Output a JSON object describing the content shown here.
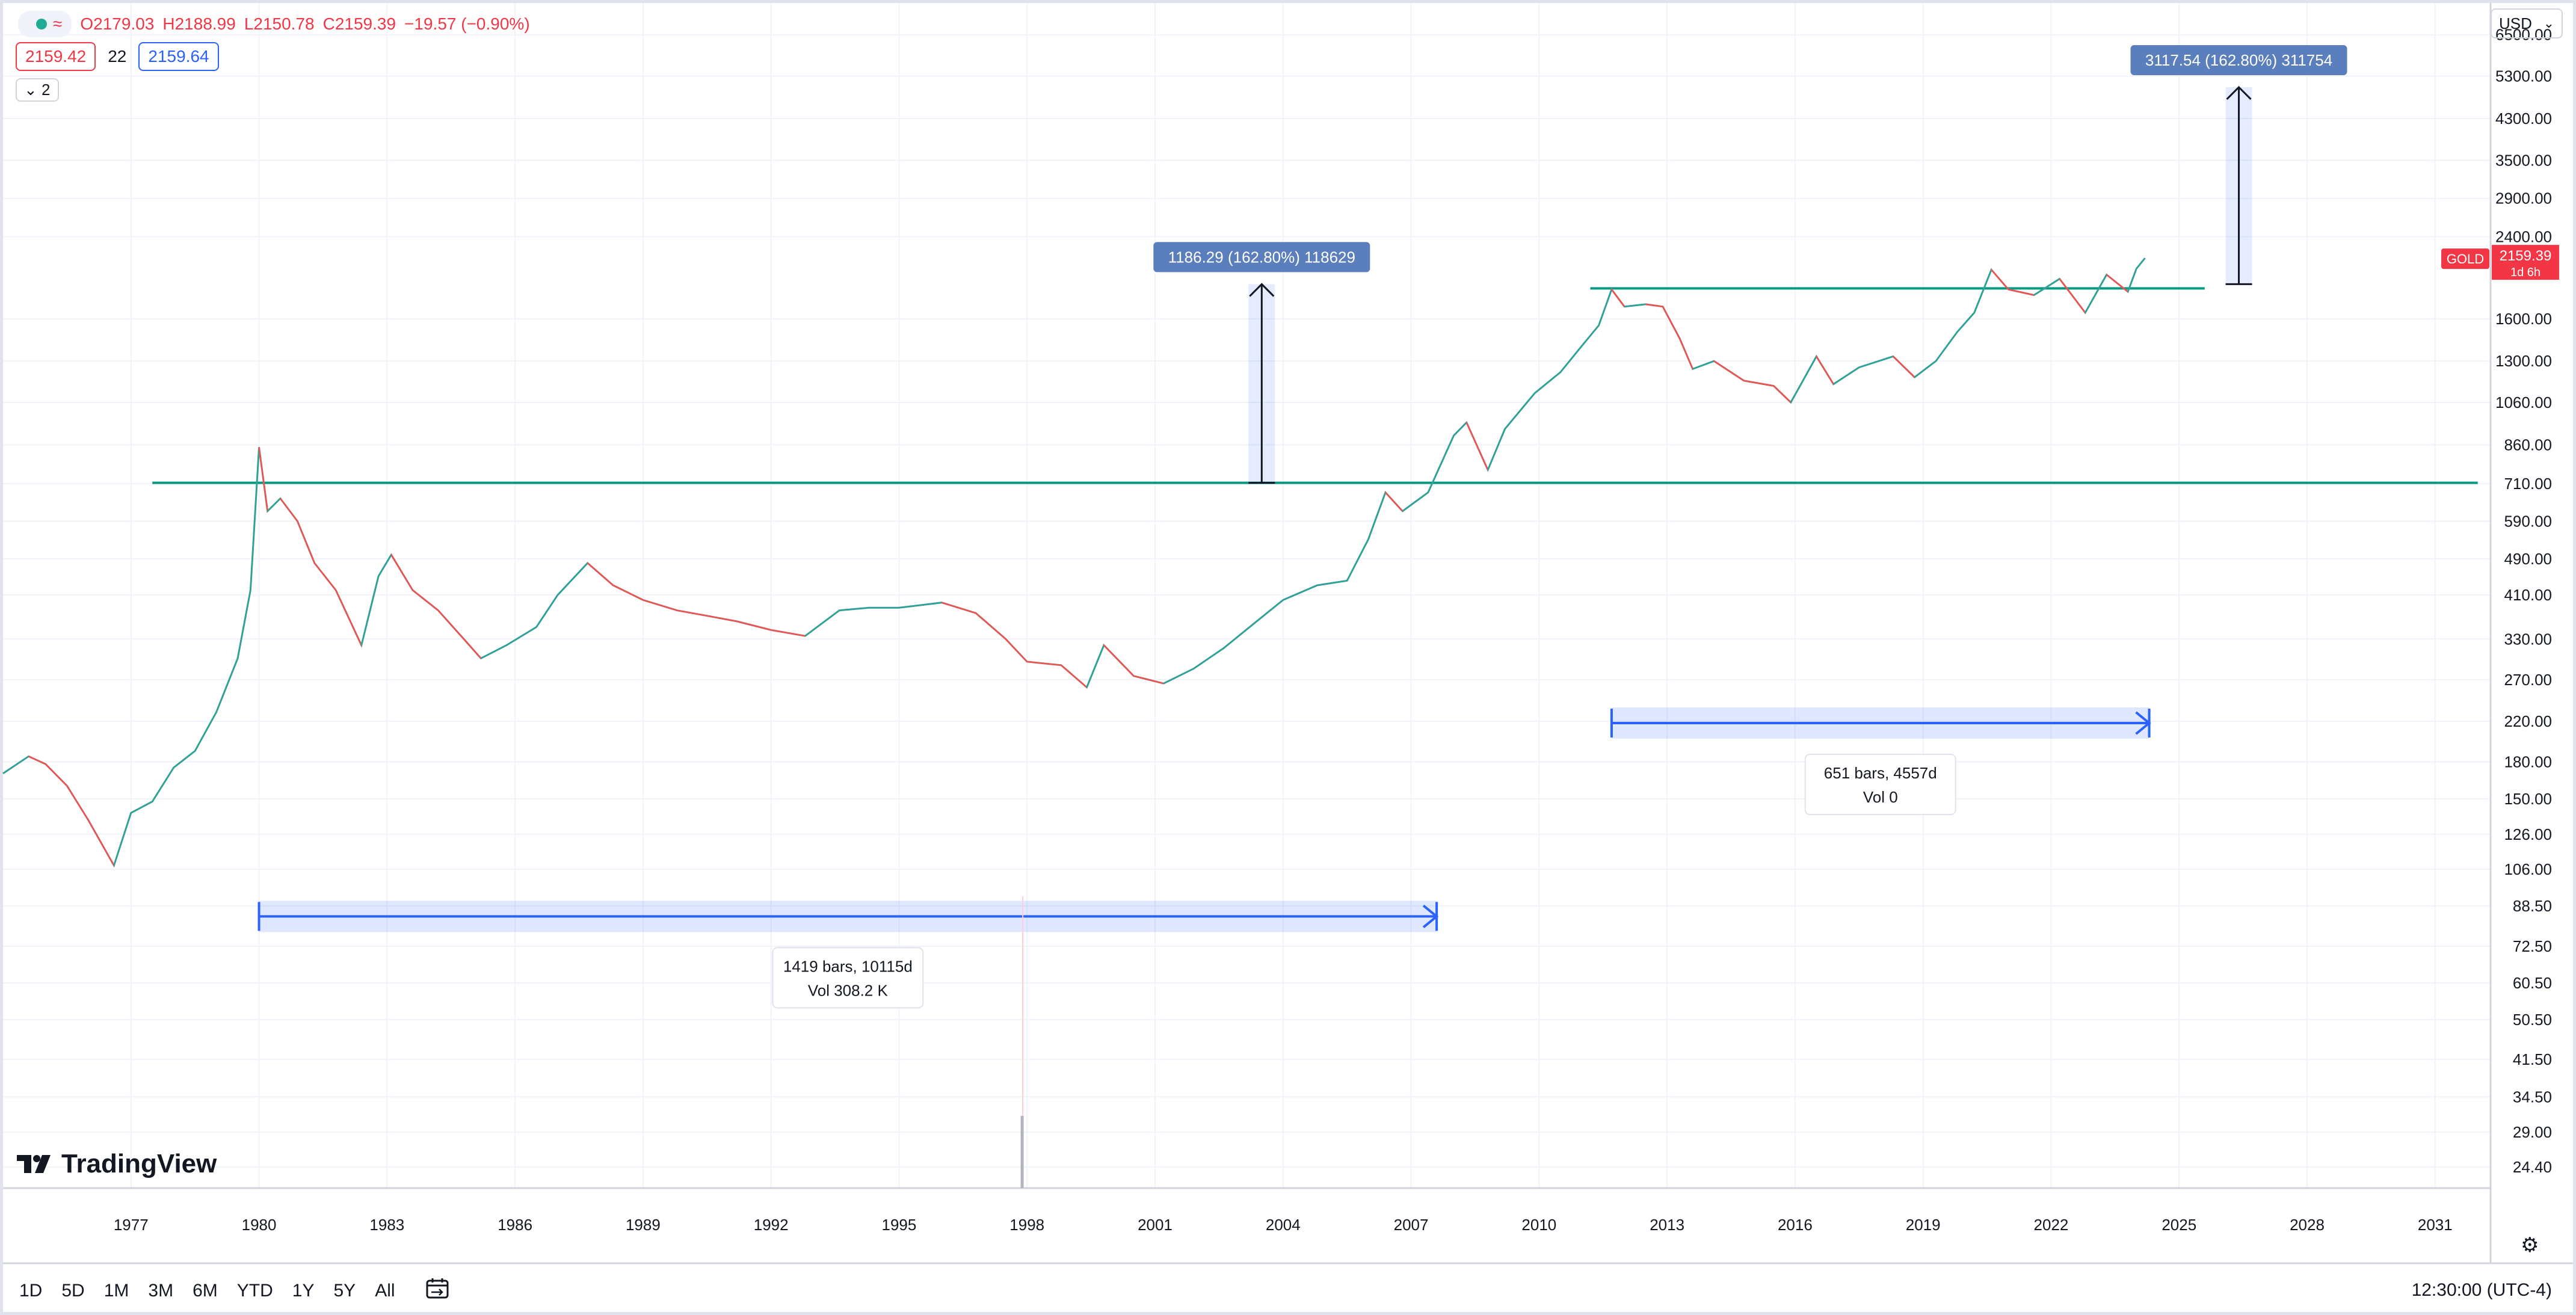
{
  "ohlc": {
    "open": "O2179.03",
    "high": "H2188.99",
    "low": "L2150.78",
    "close": "C2159.39",
    "change": "−19.57 (−0.90%)"
  },
  "price_boxes": {
    "bid": "2159.42",
    "spread": "22",
    "ask": "2159.64"
  },
  "collapse_label": "2",
  "currency": "USD",
  "brand": "TradingView",
  "ranges": [
    "1D",
    "5D",
    "1M",
    "3M",
    "6M",
    "YTD",
    "1Y",
    "5Y",
    "All"
  ],
  "clock": "12:30:00 (UTC-4)",
  "colors": {
    "up": "#26a69a",
    "down": "#ef5350",
    "hline": "#089981",
    "measure": "#2962ff",
    "label_bg": "#5b7fbd",
    "price_tag": "#f23645"
  },
  "chart_data": {
    "type": "line",
    "symbol": "GOLD",
    "price_scale": "log",
    "y_ticks": [
      24.4,
      29.0,
      34.5,
      41.5,
      50.5,
      60.5,
      72.5,
      88.5,
      106.0,
      126.0,
      150.0,
      180.0,
      220.0,
      270.0,
      330.0,
      410.0,
      490.0,
      590.0,
      710.0,
      860.0,
      1060.0,
      1300.0,
      1600.0,
      2400.0,
      2900.0,
      3500.0,
      4300.0,
      5300.0,
      6500.0
    ],
    "y_tick_labels": [
      "24.40",
      "29.00",
      "34.50",
      "41.50",
      "50.50",
      "60.50",
      "72.50",
      "88.50",
      "106.00",
      "126.00",
      "150.00",
      "180.00",
      "220.00",
      "270.00",
      "330.00",
      "410.00",
      "490.00",
      "590.00",
      "710.00",
      "860.00",
      "1060.00",
      "1300.00",
      "1600.00",
      "2400.00",
      "2900.00",
      "3500.00",
      "4300.00",
      "5300.00",
      "6500.00"
    ],
    "x_ticks": [
      "1977",
      "1980",
      "1983",
      "1986",
      "1989",
      "1992",
      "1995",
      "1998",
      "2001",
      "2004",
      "2007",
      "2010",
      "2013",
      "2016",
      "2019",
      "2022",
      "2025",
      "2028",
      "2031"
    ],
    "xlim": [
      1974.0,
      2032.3
    ],
    "ylim": [
      22,
      7600
    ],
    "series": [
      {
        "points": [
          [
            1974.0,
            170
          ],
          [
            1974.6,
            185
          ],
          [
            1975.0,
            178
          ],
          [
            1975.5,
            160
          ],
          [
            1976.0,
            135
          ],
          [
            1976.6,
            108
          ],
          [
            1977.0,
            140
          ],
          [
            1977.5,
            148
          ],
          [
            1978.0,
            175
          ],
          [
            1978.5,
            190
          ],
          [
            1979.0,
            230
          ],
          [
            1979.5,
            300
          ],
          [
            1979.8,
            420
          ],
          [
            1980.0,
            850
          ],
          [
            1980.2,
            620
          ],
          [
            1980.5,
            660
          ],
          [
            1980.9,
            590
          ],
          [
            1981.3,
            480
          ],
          [
            1981.8,
            420
          ],
          [
            1982.4,
            320
          ],
          [
            1982.8,
            450
          ],
          [
            1983.1,
            500
          ],
          [
            1983.6,
            420
          ],
          [
            1984.2,
            380
          ],
          [
            1984.8,
            330
          ],
          [
            1985.2,
            300
          ],
          [
            1985.8,
            320
          ],
          [
            1986.5,
            350
          ],
          [
            1987.0,
            410
          ],
          [
            1987.7,
            480
          ],
          [
            1988.3,
            430
          ],
          [
            1989.0,
            400
          ],
          [
            1989.8,
            380
          ],
          [
            1990.5,
            370
          ],
          [
            1991.2,
            360
          ],
          [
            1992.0,
            345
          ],
          [
            1992.8,
            335
          ],
          [
            1993.6,
            380
          ],
          [
            1994.3,
            385
          ],
          [
            1995.0,
            385
          ],
          [
            1996.0,
            395
          ],
          [
            1996.8,
            375
          ],
          [
            1997.5,
            330
          ],
          [
            1998.0,
            295
          ],
          [
            1998.8,
            290
          ],
          [
            1999.4,
            260
          ],
          [
            1999.8,
            320
          ],
          [
            2000.5,
            275
          ],
          [
            2001.2,
            265
          ],
          [
            2001.9,
            285
          ],
          [
            2002.6,
            315
          ],
          [
            2003.3,
            355
          ],
          [
            2004.0,
            400
          ],
          [
            2004.8,
            430
          ],
          [
            2005.5,
            440
          ],
          [
            2006.0,
            540
          ],
          [
            2006.4,
            680
          ],
          [
            2006.8,
            620
          ],
          [
            2007.4,
            680
          ],
          [
            2008.0,
            900
          ],
          [
            2008.3,
            960
          ],
          [
            2008.8,
            760
          ],
          [
            2009.2,
            930
          ],
          [
            2009.9,
            1110
          ],
          [
            2010.5,
            1230
          ],
          [
            2011.0,
            1400
          ],
          [
            2011.4,
            1550
          ],
          [
            2011.7,
            1850
          ],
          [
            2012.0,
            1700
          ],
          [
            2012.5,
            1720
          ],
          [
            2012.9,
            1700
          ],
          [
            2013.3,
            1450
          ],
          [
            2013.6,
            1250
          ],
          [
            2014.1,
            1300
          ],
          [
            2014.8,
            1180
          ],
          [
            2015.5,
            1150
          ],
          [
            2015.9,
            1060
          ],
          [
            2016.5,
            1330
          ],
          [
            2016.9,
            1160
          ],
          [
            2017.5,
            1260
          ],
          [
            2018.3,
            1330
          ],
          [
            2018.8,
            1200
          ],
          [
            2019.3,
            1300
          ],
          [
            2019.8,
            1500
          ],
          [
            2020.2,
            1650
          ],
          [
            2020.6,
            2040
          ],
          [
            2021.0,
            1850
          ],
          [
            2021.6,
            1800
          ],
          [
            2022.2,
            1950
          ],
          [
            2022.8,
            1650
          ],
          [
            2023.3,
            1990
          ],
          [
            2023.8,
            1830
          ],
          [
            2024.0,
            2050
          ],
          [
            2024.2,
            2159.39
          ]
        ]
      }
    ],
    "horizontal_lines": [
      {
        "y": 713,
        "x_from": 1977.5,
        "x_to": 2032.0
      },
      {
        "y": 1860,
        "x_from": 2011.2,
        "x_to": 2025.6
      }
    ],
    "price_projections": [
      {
        "x": 2003.5,
        "y_from": 713,
        "y_to": 1899,
        "label": "1186.29 (162.80%) 118629"
      },
      {
        "x": 2026.4,
        "y_from": 1899,
        "y_to": 5017,
        "label": "3117.54 (162.80%) 311754"
      }
    ],
    "date_ranges": [
      {
        "x_from": 1980.0,
        "x_to": 2007.6,
        "y": 84,
        "label1": "1419 bars, 10115d",
        "label2": "Vol 308.2 K"
      },
      {
        "x_from": 2011.7,
        "x_to": 2024.3,
        "y": 218,
        "label1": "651 bars, 4557d",
        "label2": "Vol 0"
      }
    ],
    "last_price": {
      "value": "2159.39",
      "symbol": "GOLD",
      "countdown": "1d 6h"
    }
  }
}
